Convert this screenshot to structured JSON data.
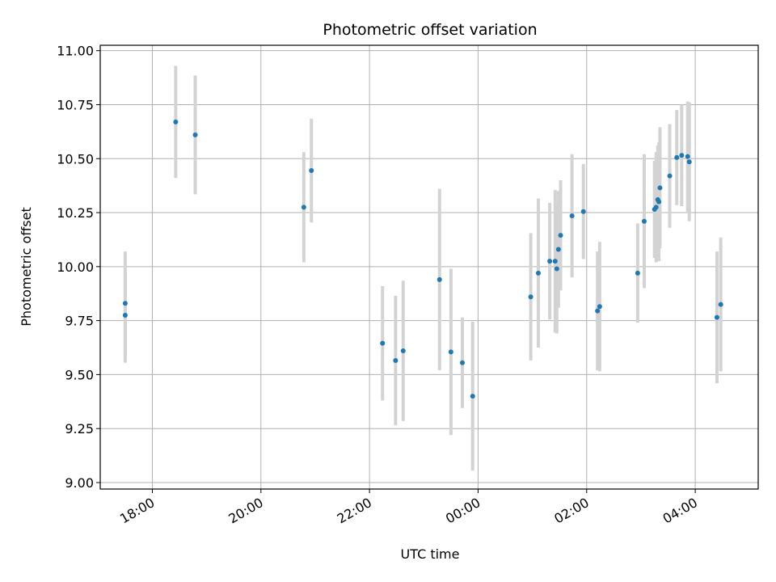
{
  "chart_data": {
    "type": "scatter",
    "title": "Photometric offset variation",
    "xlabel": "UTC time",
    "ylabel": "Photometric offset",
    "grid": true,
    "x_unit": "UTC time (hours, continuing past midnight as 24+)",
    "xlim": [
      17.04,
      29.16
    ],
    "ylim": [
      8.97,
      11.025
    ],
    "x_ticks": [
      {
        "x": 18,
        "label": "18:00"
      },
      {
        "x": 20,
        "label": "20:00"
      },
      {
        "x": 22,
        "label": "22:00"
      },
      {
        "x": 24,
        "label": "00:00"
      },
      {
        "x": 26,
        "label": "02:00"
      },
      {
        "x": 28,
        "label": "04:00"
      }
    ],
    "y_ticks": [
      {
        "y": 9.0,
        "label": "9.00"
      },
      {
        "y": 9.25,
        "label": "9.25"
      },
      {
        "y": 9.5,
        "label": "9.50"
      },
      {
        "y": 9.75,
        "label": "9.75"
      },
      {
        "y": 10.0,
        "label": "10.00"
      },
      {
        "y": 10.25,
        "label": "10.25"
      },
      {
        "y": 10.5,
        "label": "10.50"
      },
      {
        "y": 10.75,
        "label": "10.75"
      },
      {
        "y": 11.0,
        "label": "11.00"
      }
    ],
    "colors": {
      "point": "#1f77b4",
      "errorbar": "#d3d3d3",
      "grid": "#b0b0b0"
    },
    "points": [
      {
        "x": 17.5,
        "y": 9.83,
        "err": 0.24
      },
      {
        "x": 17.5,
        "y": 9.775,
        "err": 0.22
      },
      {
        "x": 18.43,
        "y": 10.67,
        "err": 0.26
      },
      {
        "x": 18.79,
        "y": 10.61,
        "err": 0.275
      },
      {
        "x": 20.79,
        "y": 10.275,
        "err": 0.255
      },
      {
        "x": 20.93,
        "y": 10.445,
        "err": 0.24
      },
      {
        "x": 22.24,
        "y": 9.645,
        "err": 0.265
      },
      {
        "x": 22.48,
        "y": 9.565,
        "err": 0.3
      },
      {
        "x": 22.62,
        "y": 9.61,
        "err": 0.325
      },
      {
        "x": 23.29,
        "y": 9.94,
        "err": 0.42
      },
      {
        "x": 23.5,
        "y": 9.605,
        "err": 0.385
      },
      {
        "x": 23.71,
        "y": 9.555,
        "err": 0.21
      },
      {
        "x": 23.9,
        "y": 9.4,
        "err": 0.345
      },
      {
        "x": 24.97,
        "y": 9.86,
        "err": 0.295
      },
      {
        "x": 25.11,
        "y": 9.97,
        "err": 0.345
      },
      {
        "x": 25.32,
        "y": 10.025,
        "err": 0.27
      },
      {
        "x": 25.42,
        "y": 10.025,
        "err": 0.33
      },
      {
        "x": 25.45,
        "y": 9.99,
        "err": 0.3
      },
      {
        "x": 25.48,
        "y": 10.08,
        "err": 0.27
      },
      {
        "x": 25.52,
        "y": 10.145,
        "err": 0.255
      },
      {
        "x": 25.73,
        "y": 10.235,
        "err": 0.285
      },
      {
        "x": 25.94,
        "y": 10.255,
        "err": 0.22
      },
      {
        "x": 26.2,
        "y": 9.795,
        "err": 0.275
      },
      {
        "x": 26.24,
        "y": 9.815,
        "err": 0.3
      },
      {
        "x": 26.94,
        "y": 9.97,
        "err": 0.23
      },
      {
        "x": 27.06,
        "y": 10.21,
        "err": 0.31
      },
      {
        "x": 27.25,
        "y": 10.265,
        "err": 0.225
      },
      {
        "x": 27.28,
        "y": 10.275,
        "err": 0.255
      },
      {
        "x": 27.31,
        "y": 10.31,
        "err": 0.25
      },
      {
        "x": 27.33,
        "y": 10.3,
        "err": 0.275
      },
      {
        "x": 27.35,
        "y": 10.365,
        "err": 0.28
      },
      {
        "x": 27.53,
        "y": 10.42,
        "err": 0.24
      },
      {
        "x": 27.66,
        "y": 10.505,
        "err": 0.22
      },
      {
        "x": 27.75,
        "y": 10.515,
        "err": 0.235
      },
      {
        "x": 27.86,
        "y": 10.51,
        "err": 0.255
      },
      {
        "x": 27.89,
        "y": 10.485,
        "err": 0.275
      },
      {
        "x": 28.4,
        "y": 9.765,
        "err": 0.305
      },
      {
        "x": 28.47,
        "y": 9.825,
        "err": 0.31
      }
    ]
  }
}
